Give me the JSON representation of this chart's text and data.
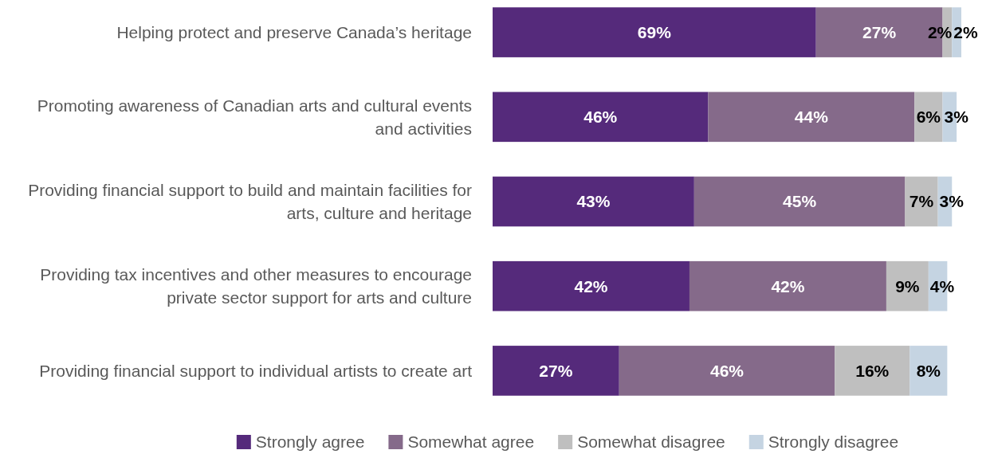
{
  "chart_data": {
    "type": "bar",
    "orientation": "horizontal",
    "stacked": true,
    "legend": "bottom",
    "categories": [
      "Helping protect and preserve Canada’s heritage",
      "Promoting awareness of Canadian arts and cultural events and activities",
      "Providing financial support to build and maintain facilities for arts, culture and heritage",
      "Providing tax incentives and other measures to encourage private sector support for arts and culture",
      "Providing financial support to individual artists to create art"
    ],
    "series": [
      {
        "name": "Strongly agree",
        "color": "#552a7b",
        "values": [
          69,
          46,
          43,
          42,
          27
        ],
        "value_labels": [
          "69%",
          "46%",
          "43%",
          "42%",
          "27%"
        ]
      },
      {
        "name": "Somewhat agree",
        "color": "#856a8a",
        "values": [
          27,
          44,
          45,
          42,
          46
        ],
        "value_labels": [
          "27%",
          "44%",
          "45%",
          "42%",
          "46%"
        ]
      },
      {
        "name": "Somewhat disagree",
        "color": "#bfbfbf",
        "values": [
          2,
          6,
          7,
          9,
          16
        ],
        "value_labels": [
          "2%",
          "6%",
          "7%",
          "9%",
          "16%"
        ]
      },
      {
        "name": "Strongly disagree",
        "color": "#c5d4e2",
        "values": [
          2,
          3,
          3,
          4,
          8
        ],
        "value_labels": [
          "2%",
          "3%",
          "3%",
          "4%",
          "8%"
        ]
      }
    ]
  }
}
